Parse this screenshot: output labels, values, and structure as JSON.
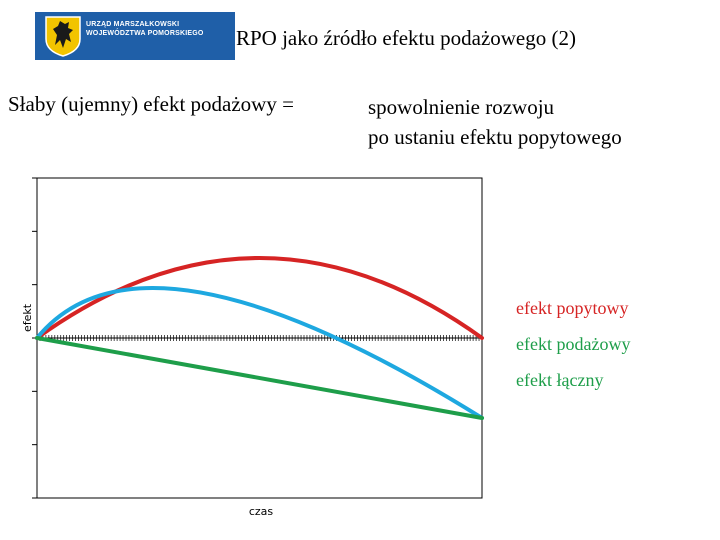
{
  "header": {
    "logo_line1": "URZĄD MARSZAŁKOWSKI",
    "logo_line2": "WOJEWÓDZTWA POMORSKIEGO",
    "logo_icon": "griffin-coat-of-arms-icon",
    "title": "RPO jako źródło efektu podażowego (2)"
  },
  "subtitle": {
    "left": "Słaby (ujemny) efekt podażowy =",
    "right_line1": "spowolnienie rozwoju",
    "right_line2": "po ustaniu efektu popytowego"
  },
  "colors": {
    "logo_bg": "#1f5fa8",
    "popytowy": "#d62424",
    "podazowy": "#1ea8e0",
    "laczny": "#1e9e4a"
  },
  "chart_data": {
    "type": "line",
    "xlabel": "czas",
    "ylabel": "efekt",
    "xlim": [
      0,
      1
    ],
    "ylim": [
      -3,
      3
    ],
    "grid": false,
    "legend_position": "right",
    "series": [
      {
        "name": "efekt popytowy",
        "color": "#d62424",
        "x": [
          0,
          0.5,
          1
        ],
        "y": [
          0,
          1.5,
          0
        ]
      },
      {
        "name": "efekt podażowy",
        "color": "#1ea8e0",
        "x": [
          0,
          0.37,
          1
        ],
        "y": [
          0,
          0.85,
          -1.5
        ]
      },
      {
        "name": "efekt łączny",
        "color": "#1e9e4a",
        "x": [
          0,
          1
        ],
        "y": [
          0,
          -1.5
        ]
      }
    ]
  }
}
